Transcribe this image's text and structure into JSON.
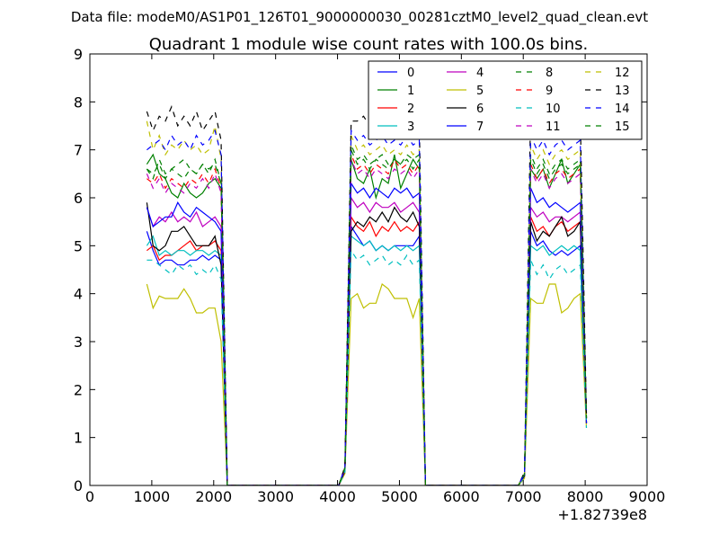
{
  "chart_data": {
    "type": "line",
    "suptitle": "Data file: modeM0/AS1P01_126T01_9000000030_00281cztM0_level2_quad_clean.evt",
    "title": "Quadrant 1 module wise count rates with 100.0s bins.",
    "xlabel": "",
    "ylabel": "",
    "x_offset_label": "+1.82739e8",
    "xlim": [
      0,
      9000
    ],
    "ylim": [
      0,
      9
    ],
    "xticks": [
      0,
      1000,
      2000,
      3000,
      4000,
      5000,
      6000,
      7000,
      8000,
      9000
    ],
    "yticks": [
      0,
      1,
      2,
      3,
      4,
      5,
      6,
      7,
      8,
      9
    ],
    "grid": false,
    "legend_position": "top-right",
    "legend_columns": 4,
    "x": [
      920,
      1020,
      1120,
      1220,
      1320,
      1420,
      1520,
      1620,
      1720,
      1820,
      1920,
      2020,
      2120,
      2220,
      2320,
      2420,
      2520,
      2620,
      2720,
      2820,
      2920,
      3020,
      3120,
      3220,
      3320,
      3420,
      3520,
      3620,
      3720,
      3820,
      3920,
      4020,
      4120,
      4220,
      4320,
      4420,
      4520,
      4620,
      4720,
      4820,
      4920,
      5020,
      5120,
      5220,
      5320,
      5420,
      5520,
      5620,
      5720,
      5820,
      5920,
      6020,
      6120,
      6220,
      6320,
      6420,
      6520,
      6620,
      6720,
      6820,
      6920,
      7020,
      7120,
      7220,
      7320,
      7420,
      7520,
      7620,
      7720,
      7820,
      7920,
      8020
    ],
    "series": [
      {
        "name": "0",
        "color": "#0000ff",
        "dash": "solid",
        "values": [
          5.3,
          4.9,
          4.6,
          4.7,
          4.7,
          4.6,
          4.6,
          4.7,
          4.7,
          4.8,
          4.7,
          4.8,
          4.7,
          0,
          0,
          0,
          0,
          0,
          0,
          0,
          0,
          0,
          0,
          0,
          0,
          0,
          0,
          0,
          0,
          0,
          0,
          0,
          0.32,
          5.4,
          5.2,
          5.0,
          5.1,
          4.9,
          5.0,
          4.9,
          5.0,
          5.0,
          5.0,
          5.0,
          5.2,
          0,
          0,
          0,
          0,
          0,
          0,
          0,
          0,
          0,
          0,
          0,
          0,
          0,
          0,
          0,
          0,
          0.2,
          5.3,
          5.0,
          5.1,
          4.9,
          4.8,
          4.9,
          4.8,
          4.9,
          5.0,
          1.3
        ]
      },
      {
        "name": "1",
        "color": "#008000",
        "dash": "solid",
        "values": [
          6.7,
          6.9,
          6.5,
          6.4,
          6.1,
          6.0,
          6.3,
          6.1,
          6.0,
          6.1,
          6.3,
          6.4,
          6.2,
          0,
          0,
          0,
          0,
          0,
          0,
          0,
          0,
          0,
          0,
          0,
          0,
          0,
          0,
          0,
          0,
          0,
          0,
          0,
          0.36,
          6.8,
          6.4,
          6.3,
          6.6,
          6.0,
          6.4,
          6.3,
          6.9,
          6.2,
          6.5,
          6.8,
          6.6,
          0,
          0,
          0,
          0,
          0,
          0,
          0,
          0,
          0,
          0,
          0,
          0,
          0,
          0,
          0,
          0,
          0.24,
          6.6,
          6.4,
          6.6,
          6.2,
          6.5,
          6.8,
          6.3,
          6.5,
          6.7,
          1.4
        ]
      },
      {
        "name": "2",
        "color": "#ff0000",
        "dash": "solid",
        "values": [
          4.9,
          5.0,
          4.7,
          4.8,
          4.8,
          4.9,
          5.0,
          5.1,
          4.9,
          5.0,
          5.0,
          5.1,
          4.9,
          0,
          0,
          0,
          0,
          0,
          0,
          0,
          0,
          0,
          0,
          0,
          0,
          0,
          0,
          0,
          0,
          0,
          0,
          0,
          0.32,
          5.6,
          5.4,
          5.3,
          5.5,
          5.2,
          5.4,
          5.3,
          5.5,
          5.3,
          5.4,
          5.3,
          5.5,
          0,
          0,
          0,
          0,
          0,
          0,
          0,
          0,
          0,
          0,
          0,
          0,
          0,
          0,
          0,
          0,
          0.22,
          5.6,
          5.3,
          5.4,
          5.2,
          5.4,
          5.5,
          5.3,
          5.4,
          5.5,
          1.3
        ]
      },
      {
        "name": "3",
        "color": "#00bfbf",
        "dash": "solid",
        "values": [
          5.0,
          5.2,
          4.8,
          4.9,
          4.8,
          4.9,
          4.9,
          4.8,
          4.9,
          4.9,
          4.8,
          4.9,
          4.8,
          0,
          0,
          0,
          0,
          0,
          0,
          0,
          0,
          0,
          0,
          0,
          0,
          0,
          0,
          0,
          0,
          0,
          0,
          0,
          0.3,
          5.2,
          5.1,
          5.0,
          5.1,
          4.9,
          5.0,
          4.9,
          5.0,
          4.9,
          5.0,
          4.9,
          5.0,
          0,
          0,
          0,
          0,
          0,
          0,
          0,
          0,
          0,
          0,
          0,
          0,
          0,
          0,
          0,
          0,
          0.2,
          5.0,
          4.9,
          5.0,
          4.8,
          4.9,
          5.0,
          4.9,
          5.0,
          4.9,
          1.3
        ]
      },
      {
        "name": "4",
        "color": "#bf00bf",
        "dash": "solid",
        "values": [
          5.8,
          5.4,
          5.6,
          5.5,
          5.7,
          5.5,
          5.6,
          5.5,
          5.7,
          5.4,
          5.5,
          5.6,
          5.4,
          0,
          0,
          0,
          0,
          0,
          0,
          0,
          0,
          0,
          0,
          0,
          0,
          0,
          0,
          0,
          0,
          0,
          0,
          0,
          0.34,
          6.0,
          5.8,
          5.9,
          5.7,
          5.9,
          5.8,
          5.8,
          5.9,
          5.7,
          5.8,
          5.9,
          5.7,
          0,
          0,
          0,
          0,
          0,
          0,
          0,
          0,
          0,
          0,
          0,
          0,
          0,
          0,
          0,
          0,
          0.22,
          5.8,
          5.6,
          5.7,
          5.5,
          5.6,
          5.6,
          5.5,
          5.6,
          5.7,
          1.3
        ]
      },
      {
        "name": "5",
        "color": "#bfbf00",
        "dash": "solid",
        "values": [
          4.2,
          3.7,
          3.95,
          3.9,
          3.9,
          3.9,
          4.1,
          3.9,
          3.6,
          3.6,
          3.7,
          3.7,
          3.0,
          0,
          0,
          0,
          0,
          0,
          0,
          0,
          0,
          0,
          0,
          0,
          0,
          0,
          0,
          0,
          0,
          0,
          0,
          0,
          0.25,
          3.9,
          4.0,
          3.7,
          3.8,
          3.8,
          4.2,
          4.1,
          3.9,
          3.9,
          3.9,
          3.5,
          3.9,
          0,
          0,
          0,
          0,
          0,
          0,
          0,
          0,
          0,
          0,
          0,
          0,
          0,
          0,
          0,
          0,
          0.15,
          3.9,
          3.8,
          3.8,
          4.2,
          4.2,
          3.6,
          3.7,
          3.9,
          4.0,
          1.2
        ]
      },
      {
        "name": "6",
        "color": "#000000",
        "dash": "solid",
        "values": [
          5.9,
          5.0,
          4.9,
          5.0,
          5.3,
          5.3,
          5.4,
          5.2,
          5.0,
          5.0,
          5.0,
          5.2,
          4.6,
          0,
          0,
          0,
          0,
          0,
          0,
          0,
          0,
          0,
          0,
          0,
          0,
          0,
          0,
          0,
          0,
          0,
          0,
          0,
          0.3,
          5.3,
          5.5,
          5.4,
          5.6,
          5.5,
          5.7,
          5.5,
          5.8,
          5.6,
          5.5,
          5.7,
          5.4,
          0,
          0,
          0,
          0,
          0,
          0,
          0,
          0,
          0,
          0,
          0,
          0,
          0,
          0,
          0,
          0,
          0.2,
          5.5,
          5.1,
          5.3,
          5.2,
          5.4,
          5.6,
          5.2,
          5.3,
          5.5,
          1.3
        ]
      },
      {
        "name": "7",
        "color": "#0000ff",
        "dash": "solid",
        "values": [
          5.8,
          5.4,
          5.5,
          5.6,
          5.6,
          5.9,
          5.7,
          5.6,
          5.8,
          5.7,
          5.6,
          5.5,
          5.3,
          0,
          0,
          0,
          0,
          0,
          0,
          0,
          0,
          0,
          0,
          0,
          0,
          0,
          0,
          0,
          0,
          0,
          0,
          0,
          0.33,
          6.3,
          6.1,
          6.2,
          6.0,
          6.2,
          6.1,
          6.0,
          6.2,
          6.1,
          6.2,
          6.0,
          6.1,
          0,
          0,
          0,
          0,
          0,
          0,
          0,
          0,
          0,
          0,
          0,
          0,
          0,
          0,
          0,
          0,
          0.22,
          6.2,
          5.9,
          6.0,
          5.8,
          5.9,
          5.8,
          5.7,
          5.8,
          5.9,
          1.3
        ]
      },
      {
        "name": "8",
        "color": "#008000",
        "dash": "dashed",
        "values": [
          6.6,
          6.4,
          6.8,
          6.5,
          6.6,
          6.7,
          6.8,
          6.6,
          6.5,
          6.7,
          6.6,
          6.7,
          6.3,
          0,
          0,
          0,
          0,
          0,
          0,
          0,
          0,
          0,
          0,
          0,
          0,
          0,
          0,
          0,
          0,
          0,
          0,
          0,
          0.37,
          7.1,
          6.8,
          6.9,
          6.7,
          6.8,
          6.9,
          6.7,
          6.8,
          6.7,
          6.9,
          6.8,
          6.9,
          0,
          0,
          0,
          0,
          0,
          0,
          0,
          0,
          0,
          0,
          0,
          0,
          0,
          0,
          0,
          0,
          0.25,
          6.9,
          6.6,
          6.8,
          6.5,
          6.7,
          6.8,
          6.6,
          6.7,
          6.8,
          1.4
        ]
      },
      {
        "name": "9",
        "color": "#ff0000",
        "dash": "dashed",
        "values": [
          6.4,
          6.3,
          6.5,
          6.2,
          6.4,
          6.3,
          6.2,
          6.4,
          6.3,
          6.5,
          6.3,
          6.6,
          6.2,
          0,
          0,
          0,
          0,
          0,
          0,
          0,
          0,
          0,
          0,
          0,
          0,
          0,
          0,
          0,
          0,
          0,
          0,
          0,
          0.36,
          6.9,
          6.6,
          6.7,
          6.5,
          6.7,
          6.6,
          6.5,
          6.8,
          6.6,
          6.7,
          6.5,
          6.7,
          0,
          0,
          0,
          0,
          0,
          0,
          0,
          0,
          0,
          0,
          0,
          0,
          0,
          0,
          0,
          0,
          0.24,
          6.7,
          6.4,
          6.6,
          6.3,
          6.5,
          6.6,
          6.4,
          6.5,
          6.6,
          1.4
        ]
      },
      {
        "name": "10",
        "color": "#00bfbf",
        "dash": "dashed",
        "values": [
          4.7,
          4.7,
          4.6,
          4.5,
          4.4,
          4.6,
          4.5,
          4.6,
          4.4,
          4.5,
          4.4,
          4.6,
          4.3,
          0,
          0,
          0,
          0,
          0,
          0,
          0,
          0,
          0,
          0,
          0,
          0,
          0,
          0,
          0,
          0,
          0,
          0,
          0,
          0.28,
          4.9,
          4.7,
          4.8,
          4.6,
          4.7,
          4.8,
          4.6,
          4.7,
          4.6,
          4.8,
          4.6,
          4.7,
          0,
          0,
          0,
          0,
          0,
          0,
          0,
          0,
          0,
          0,
          0,
          0,
          0,
          0,
          0,
          0,
          0.18,
          4.7,
          4.4,
          4.6,
          4.3,
          4.5,
          4.6,
          4.4,
          4.5,
          4.6,
          1.2
        ]
      },
      {
        "name": "11",
        "color": "#bf00bf",
        "dash": "dashed",
        "values": [
          6.5,
          6.2,
          6.4,
          6.1,
          6.3,
          6.2,
          6.1,
          6.3,
          6.2,
          6.4,
          6.2,
          6.5,
          6.1,
          0,
          0,
          0,
          0,
          0,
          0,
          0,
          0,
          0,
          0,
          0,
          0,
          0,
          0,
          0,
          0,
          0,
          0,
          0,
          0.35,
          6.8,
          6.5,
          6.6,
          6.4,
          6.6,
          6.5,
          6.4,
          6.6,
          6.5,
          6.6,
          6.4,
          6.6,
          0,
          0,
          0,
          0,
          0,
          0,
          0,
          0,
          0,
          0,
          0,
          0,
          0,
          0,
          0,
          0,
          0.23,
          6.6,
          6.3,
          6.5,
          6.2,
          6.4,
          6.5,
          6.3,
          6.4,
          6.5,
          1.4
        ]
      },
      {
        "name": "12",
        "color": "#bfbf00",
        "dash": "dashed",
        "values": [
          7.6,
          7.0,
          7.3,
          6.9,
          7.1,
          7.0,
          7.2,
          7.0,
          7.1,
          6.9,
          7.0,
          7.5,
          6.8,
          0,
          0,
          0,
          0,
          0,
          0,
          0,
          0,
          0,
          0,
          0,
          0,
          0,
          0,
          0,
          0,
          0,
          0,
          0,
          0.38,
          7.3,
          7.0,
          7.1,
          6.9,
          7.0,
          7.1,
          6.9,
          7.0,
          6.9,
          7.1,
          6.9,
          7.0,
          0,
          0,
          0,
          0,
          0,
          0,
          0,
          0,
          0,
          0,
          0,
          0,
          0,
          0,
          0,
          0,
          0.26,
          7.1,
          6.8,
          7.0,
          6.7,
          6.9,
          7.0,
          6.8,
          6.9,
          7.0,
          1.4
        ]
      },
      {
        "name": "13",
        "color": "#000000",
        "dash": "dashed",
        "values": [
          7.8,
          7.4,
          7.7,
          7.6,
          7.9,
          7.5,
          7.7,
          7.5,
          7.8,
          7.4,
          7.6,
          7.8,
          7.2,
          0,
          0,
          0,
          0,
          0,
          0,
          0,
          0,
          0,
          0,
          0,
          0,
          0,
          0,
          0,
          0,
          0,
          0,
          0,
          0.4,
          7.6,
          7.6,
          7.7,
          7.5,
          7.6,
          7.7,
          7.5,
          7.6,
          7.5,
          7.7,
          7.5,
          7.6,
          0,
          0,
          0,
          0,
          0,
          0,
          0,
          0,
          0,
          0,
          0,
          0,
          0,
          0,
          0,
          0,
          0.28,
          7.9,
          7.6,
          7.7,
          7.5,
          7.6,
          7.7,
          7.5,
          7.6,
          7.7,
          1.5
        ]
      },
      {
        "name": "14",
        "color": "#0000ff",
        "dash": "dashed",
        "values": [
          7.0,
          7.1,
          7.2,
          7.0,
          7.3,
          7.1,
          7.2,
          7.0,
          7.3,
          7.1,
          7.2,
          7.4,
          6.9,
          0,
          0,
          0,
          0,
          0,
          0,
          0,
          0,
          0,
          0,
          0,
          0,
          0,
          0,
          0,
          0,
          0,
          0,
          0,
          0.38,
          7.4,
          7.2,
          7.3,
          7.1,
          7.2,
          7.3,
          7.1,
          7.2,
          7.1,
          7.3,
          7.1,
          7.2,
          0,
          0,
          0,
          0,
          0,
          0,
          0,
          0,
          0,
          0,
          0,
          0,
          0,
          0,
          0,
          0,
          0.26,
          7.3,
          7.0,
          7.2,
          6.9,
          7.1,
          7.2,
          7.0,
          7.1,
          7.2,
          1.4
        ]
      },
      {
        "name": "15",
        "color": "#008000",
        "dash": "dashed",
        "values": [
          6.6,
          6.5,
          6.7,
          6.4,
          6.6,
          6.5,
          6.4,
          6.6,
          6.5,
          6.7,
          6.5,
          6.8,
          6.3,
          0,
          0,
          0,
          0,
          0,
          0,
          0,
          0,
          0,
          0,
          0,
          0,
          0,
          0,
          0,
          0,
          0,
          0,
          0,
          0.36,
          7.0,
          6.7,
          6.8,
          6.6,
          6.8,
          6.7,
          6.6,
          6.8,
          6.7,
          6.8,
          6.6,
          6.8,
          0,
          0,
          0,
          0,
          0,
          0,
          0,
          0,
          0,
          0,
          0,
          0,
          0,
          0,
          0,
          0,
          0.24,
          6.8,
          6.5,
          6.7,
          6.4,
          6.6,
          6.7,
          6.5,
          6.6,
          6.7,
          1.4
        ]
      }
    ]
  }
}
